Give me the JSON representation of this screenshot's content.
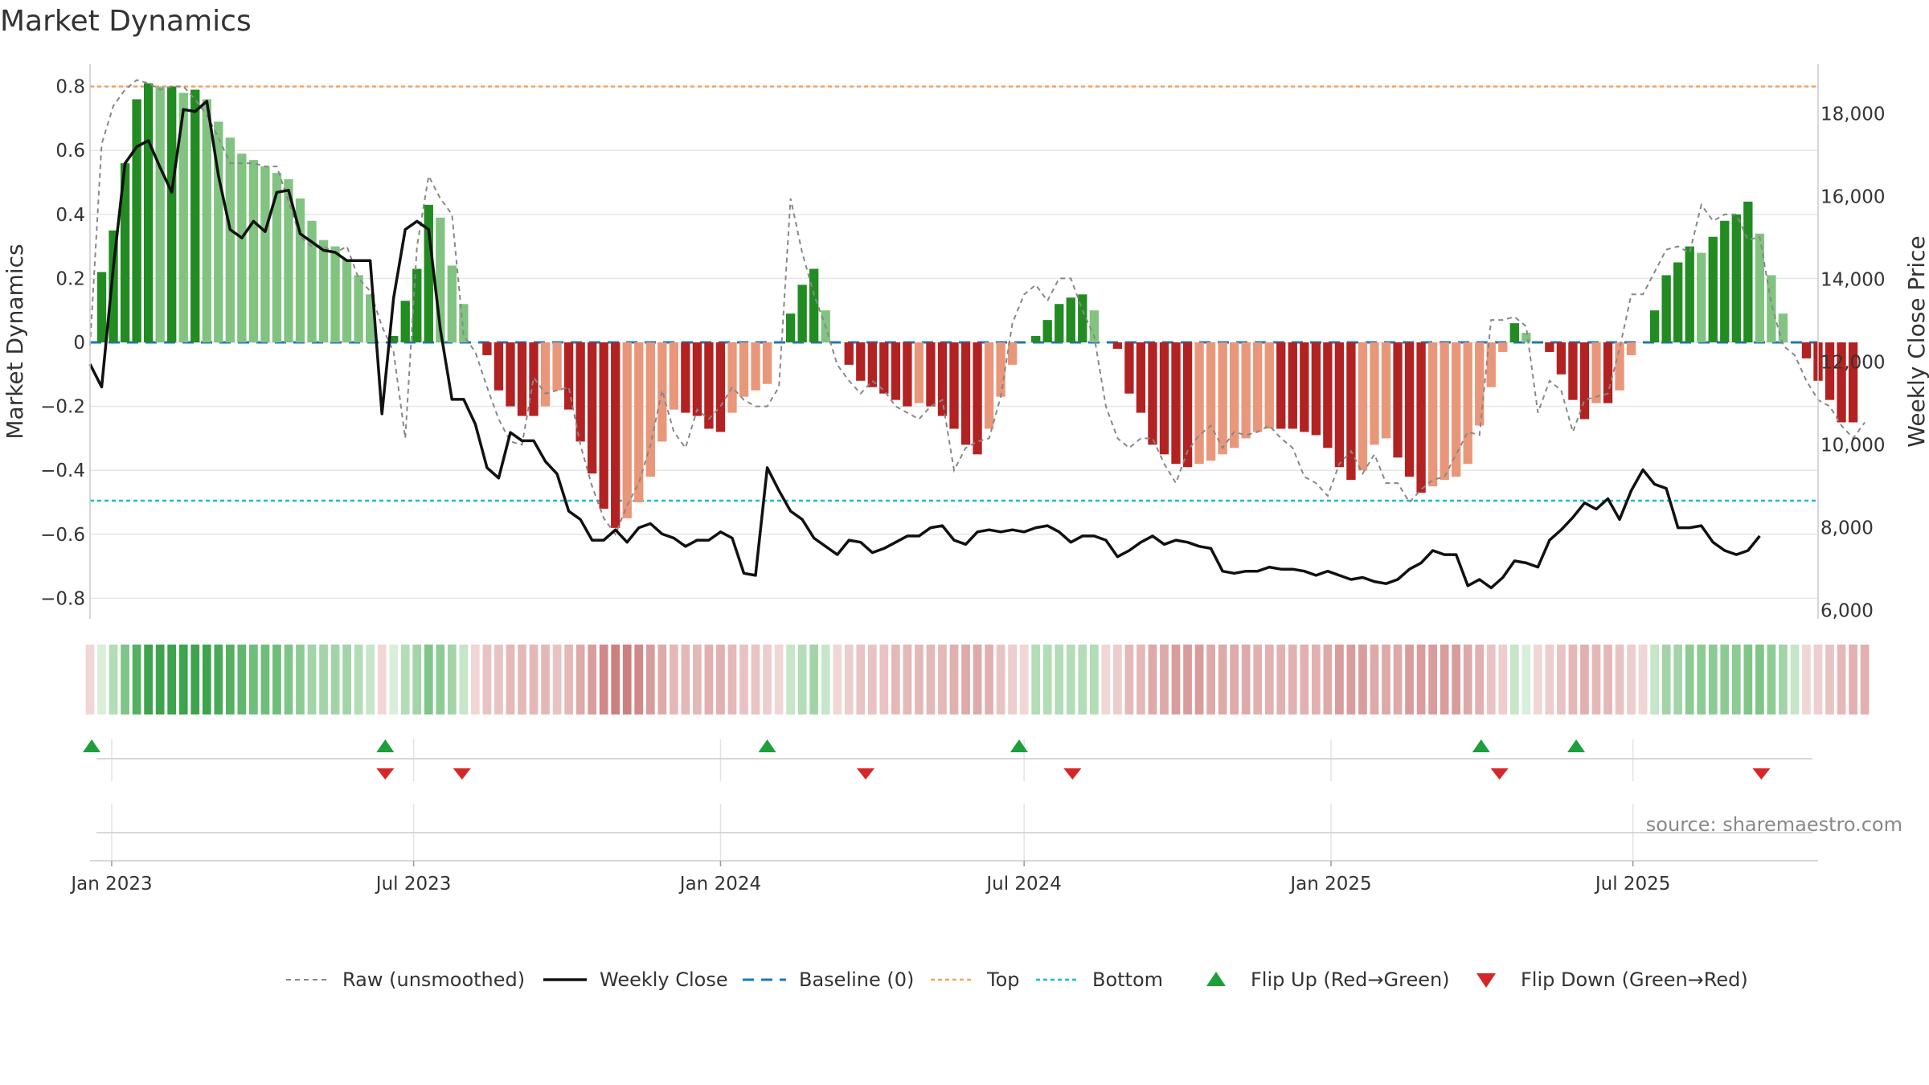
{
  "chart_data": {
    "type": "bar",
    "title": "Market Dynamics",
    "ylabel": "Market Dynamics",
    "y2label": "Weekly Close Price",
    "ylim": [
      -0.86,
      0.89
    ],
    "y2lim": [
      5800,
      18900
    ],
    "yticks": [
      0.8,
      0.6,
      0.4,
      0.2,
      0,
      -0.2,
      -0.4,
      -0.6,
      -0.8
    ],
    "ytick_labels": [
      "0.8",
      "0.6",
      "0.4",
      "0.2",
      "0",
      "−0.2",
      "−0.4",
      "−0.6",
      "−0.8"
    ],
    "y2ticks": [
      18000,
      16000,
      14000,
      12000,
      10000,
      8000,
      6000
    ],
    "y2tick_labels": [
      "18,000",
      "16,000",
      "14,000",
      "12,000",
      "10,000",
      "8,000",
      "6,000"
    ],
    "x_start": "2022-12-19",
    "x_end": "2025-10-20",
    "xticks": [
      "2023-01-01",
      "2023-07-01",
      "2024-01-01",
      "2024-07-01",
      "2025-01-01",
      "2025-07-01"
    ],
    "xtick_labels": [
      "Jan 2023",
      "Jul 2023",
      "Jan 2024",
      "Jul 2024",
      "Jan 2025",
      "Jul 2025"
    ],
    "first_week": "2022-12-19",
    "grid": true,
    "legend_position": "bottom",
    "top_level": 0.8,
    "bottom_level": -0.495,
    "baseline": 0,
    "colors": {
      "green_strong": "#228b22",
      "green_light": "#82c382",
      "red_strong": "#b22222",
      "red_light": "#e9977a",
      "price_line": "#111111",
      "raw_line": "#888888",
      "baseline": "#1f77b4",
      "top": "#f4a460",
      "bottom": "#17becf",
      "flip_up": "#1e9e3c",
      "flip_down": "#d62728"
    },
    "series": [
      {
        "name": "Market Dynamics",
        "values": [
          0,
          0.22,
          0.35,
          0.56,
          0.76,
          0.81,
          0.8,
          0.8,
          0.78,
          0.79,
          0.76,
          0.69,
          0.64,
          0.59,
          0.57,
          0.55,
          0.53,
          0.51,
          0.45,
          0.38,
          0.32,
          0.3,
          0.26,
          0.21,
          0.15,
          0,
          0.02,
          0.13,
          0.23,
          0.43,
          0.39,
          0.24,
          0.12,
          0,
          -0.04,
          -0.15,
          -0.2,
          -0.23,
          -0.23,
          -0.2,
          -0.15,
          -0.21,
          -0.31,
          -0.41,
          -0.52,
          -0.58,
          -0.55,
          -0.5,
          -0.42,
          -0.31,
          -0.21,
          -0.22,
          -0.23,
          -0.27,
          -0.28,
          -0.22,
          -0.17,
          -0.15,
          -0.13,
          0,
          0.09,
          0.18,
          0.23,
          0.1,
          0,
          -0.07,
          -0.12,
          -0.14,
          -0.16,
          -0.18,
          -0.2,
          -0.19,
          -0.2,
          -0.23,
          -0.27,
          -0.32,
          -0.35,
          -0.27,
          -0.17,
          -0.07,
          0,
          0.02,
          0.07,
          0.12,
          0.14,
          0.15,
          0.1,
          0,
          -0.02,
          -0.16,
          -0.22,
          -0.32,
          -0.35,
          -0.38,
          -0.39,
          -0.38,
          -0.37,
          -0.35,
          -0.33,
          -0.3,
          -0.28,
          -0.27,
          -0.27,
          -0.27,
          -0.28,
          -0.29,
          -0.33,
          -0.39,
          -0.43,
          -0.4,
          -0.32,
          -0.3,
          -0.36,
          -0.42,
          -0.47,
          -0.45,
          -0.43,
          -0.42,
          -0.38,
          -0.26,
          -0.14,
          -0.03,
          0.06,
          0.03,
          0,
          -0.03,
          -0.1,
          -0.18,
          -0.24,
          -0.19,
          -0.19,
          -0.15,
          -0.04,
          0,
          0.1,
          0.21,
          0.25,
          0.3,
          0.28,
          0.33,
          0.38,
          0.4,
          0.44,
          0.34,
          0.21,
          0.09,
          0,
          -0.05,
          -0.12,
          -0.18,
          -0.25,
          -0.25
        ]
      },
      {
        "name": "Raw (unsmoothed)",
        "values": [
          -0.01,
          0.62,
          0.74,
          0.79,
          0.82,
          0.81,
          0.79,
          0.8,
          0.8,
          0.76,
          0.71,
          0.64,
          0.56,
          0.56,
          0.56,
          0.55,
          0.55,
          0.44,
          0.33,
          0.3,
          0.3,
          0.28,
          0.3,
          0.2,
          0.16,
          0.05,
          -0.03,
          -0.3,
          0.3,
          0.52,
          0.45,
          0.4,
          0.02,
          -0.03,
          -0.14,
          -0.24,
          -0.31,
          -0.32,
          -0.11,
          -0.16,
          -0.15,
          -0.14,
          -0.32,
          -0.45,
          -0.55,
          -0.6,
          -0.51,
          -0.44,
          -0.32,
          -0.15,
          -0.28,
          -0.33,
          -0.21,
          -0.24,
          -0.2,
          -0.14,
          -0.18,
          -0.2,
          -0.2,
          -0.14,
          0.45,
          0.28,
          0.15,
          0.05,
          -0.07,
          -0.12,
          -0.16,
          -0.12,
          -0.15,
          -0.2,
          -0.22,
          -0.24,
          -0.2,
          -0.18,
          -0.4,
          -0.33,
          -0.31,
          -0.3,
          -0.17,
          0.06,
          0.15,
          0.18,
          0.13,
          0.2,
          0.2,
          0.1,
          0.02,
          -0.2,
          -0.3,
          -0.33,
          -0.3,
          -0.3,
          -0.38,
          -0.44,
          -0.34,
          -0.29,
          -0.26,
          -0.33,
          -0.28,
          -0.29,
          -0.28,
          -0.26,
          -0.3,
          -0.33,
          -0.42,
          -0.44,
          -0.48,
          -0.38,
          -0.34,
          -0.41,
          -0.35,
          -0.44,
          -0.44,
          -0.5,
          -0.46,
          -0.43,
          -0.42,
          -0.35,
          -0.28,
          -0.29,
          0.07,
          0.07,
          0.08,
          0.05,
          -0.22,
          -0.12,
          -0.15,
          -0.28,
          -0.18,
          -0.17,
          -0.16,
          -0.02,
          0.15,
          0.15,
          0.22,
          0.29,
          0.3,
          0.28,
          0.43,
          0.38,
          0.4,
          0.4,
          0.32,
          0.33,
          0.12,
          -0.01,
          -0.04,
          -0.12,
          -0.18,
          -0.2,
          -0.26,
          -0.3,
          -0.25
        ]
      },
      {
        "name": "Weekly Close",
        "values": [
          11950,
          11400,
          14300,
          16800,
          17200,
          17350,
          16700,
          16100,
          18100,
          18050,
          18300,
          16500,
          15200,
          15000,
          15400,
          15150,
          16100,
          16150,
          15100,
          14900,
          14700,
          14650,
          14450,
          14450,
          14450,
          10750,
          13550,
          15200,
          15400,
          15200,
          12800,
          11100,
          11100,
          10500,
          9450,
          9200,
          10300,
          10100,
          10100,
          9600,
          9300,
          8400,
          8200,
          7700,
          7700,
          7950,
          7650,
          8000,
          8100,
          7850,
          7750,
          7550,
          7700,
          7700,
          7900,
          7750,
          6900,
          6850,
          9450,
          8900,
          8400,
          8200,
          7750,
          7550,
          7350,
          7700,
          7650,
          7400,
          7500,
          7650,
          7800,
          7800,
          8000,
          8050,
          7700,
          7600,
          7900,
          7950,
          7900,
          7950,
          7900,
          8000,
          8050,
          7900,
          7650,
          7800,
          7800,
          7700,
          7300,
          7450,
          7650,
          7800,
          7600,
          7700,
          7650,
          7550,
          7500,
          6950,
          6900,
          6950,
          6950,
          7050,
          7000,
          7000,
          6950,
          6850,
          6950,
          6850,
          6750,
          6800,
          6700,
          6650,
          6750,
          7000,
          7150,
          7450,
          7350,
          7350,
          6600,
          6750,
          6550,
          6800,
          7200,
          7150,
          7050,
          7700,
          7950,
          8250,
          8600,
          8450,
          8700,
          8200,
          8900,
          9400,
          9050,
          8950,
          8000,
          8000,
          8050,
          7650,
          7450,
          7350,
          7450,
          7800
        ]
      }
    ],
    "strip_colors": [
      "#f1d6d6",
      "#d9eedb",
      "#b2ddb6",
      "#7fc488",
      "#55b062",
      "#3da34d",
      "#3da34d",
      "#3da34d",
      "#3da34d",
      "#3da34d",
      "#3da34d",
      "#4aa958",
      "#55b062",
      "#62b66e",
      "#6ebd79",
      "#6ebd79",
      "#6ebd79",
      "#7fc488",
      "#8dcb95",
      "#a2d4a8",
      "#a2d4a8",
      "#a2d4a8",
      "#a2d4a8",
      "#b2ddb6",
      "#c6e5c9",
      "#f1d6d6",
      "#d9eedb",
      "#b2ddb6",
      "#a2d4a8",
      "#7fc488",
      "#8dcb95",
      "#a2d4a8",
      "#c6e5c9",
      "#f1d6d6",
      "#e9c3c3",
      "#e9c3c3",
      "#e5b8b8",
      "#e5b8b8",
      "#e5b8b8",
      "#e5b8b8",
      "#e9c3c3",
      "#e5b8b8",
      "#dea9a9",
      "#d89c9c",
      "#d08888",
      "#cc7f7f",
      "#cc7f7f",
      "#d08888",
      "#d89c9c",
      "#dea9a9",
      "#e5b8b8",
      "#e5b8b8",
      "#e5b8b8",
      "#e2b0b0",
      "#e2b0b0",
      "#e5b8b8",
      "#e9c3c3",
      "#e9c3c3",
      "#edcdcd",
      "#f1d6d6",
      "#c6e5c9",
      "#b2ddb6",
      "#a2d4a8",
      "#c6e5c9",
      "#f1d6d6",
      "#edcdcd",
      "#e9c3c3",
      "#e9c3c3",
      "#e9c3c3",
      "#e5b8b8",
      "#e5b8b8",
      "#e5b8b8",
      "#e5b8b8",
      "#e5b8b8",
      "#e2b0b0",
      "#dea9a9",
      "#dea9a9",
      "#e2b0b0",
      "#e9c3c3",
      "#edcdcd",
      "#f1d6d6",
      "#b2ddb6",
      "#b2ddb6",
      "#b2ddb6",
      "#b2ddb6",
      "#b2ddb6",
      "#b2ddb6",
      "#f1d6d6",
      "#edcdcd",
      "#e5b8b8",
      "#e5b8b8",
      "#dea9a9",
      "#dea9a9",
      "#d89c9c",
      "#d89c9c",
      "#d89c9c",
      "#dea9a9",
      "#dea9a9",
      "#dea9a9",
      "#dea9a9",
      "#e2b0b0",
      "#e2b0b0",
      "#e2b0b0",
      "#e2b0b0",
      "#e2b0b0",
      "#e2b0b0",
      "#dea9a9",
      "#d89c9c",
      "#d89c9c",
      "#d89c9c",
      "#dea9a9",
      "#dea9a9",
      "#dea9a9",
      "#d89c9c",
      "#d89c9c",
      "#d89c9c",
      "#d89c9c",
      "#d89c9c",
      "#dea9a9",
      "#e2b0b0",
      "#e9c3c3",
      "#edcdcd",
      "#c6e5c9",
      "#d9eedb",
      "#f1d6d6",
      "#edcdcd",
      "#e9c3c3",
      "#e5b8b8",
      "#e2b0b0",
      "#e5b8b8",
      "#e5b8b8",
      "#e9c3c3",
      "#edcdcd",
      "#f1d6d6",
      "#c6e5c9",
      "#a2d4a8",
      "#a2d4a8",
      "#8dcb95",
      "#8dcb95",
      "#8dcb95",
      "#8dcb95",
      "#8dcb95",
      "#7fc488",
      "#7fc488",
      "#8dcb95",
      "#a2d4a8",
      "#c6e5c9",
      "#f1d6d6",
      "#edcdcd",
      "#e9c3c3",
      "#e5b8b8",
      "#e2b0b0",
      "#e2b0b0"
    ],
    "flip_up": [
      "2022-12-20",
      "2023-06-14",
      "2024-01-29",
      "2024-06-28",
      "2025-04-01",
      "2025-05-28"
    ],
    "flip_down": [
      "2023-06-14",
      "2023-07-30",
      "2024-03-28",
      "2024-07-30",
      "2025-04-12",
      "2025-09-16"
    ],
    "source": "source: sharemaestro.com",
    "legend": [
      {
        "label": "Raw (unsmoothed)",
        "kind": "line",
        "color": "#888888",
        "dash": "6,5",
        "width": 2
      },
      {
        "label": "Weekly Close",
        "kind": "line",
        "color": "#111111",
        "dash": "",
        "width": 3.5
      },
      {
        "label": "Baseline (0)",
        "kind": "line",
        "color": "#1f77b4",
        "dash": "14,9",
        "width": 3
      },
      {
        "label": "Top",
        "kind": "line",
        "color": "#f4a460",
        "dash": "5,4",
        "width": 2.5
      },
      {
        "label": "Bottom",
        "kind": "line",
        "color": "#17becf",
        "dash": "5,4",
        "width": 2.5
      },
      {
        "label": "Flip Up (Red→Green)",
        "kind": "up",
        "color": "#1e9e3c"
      },
      {
        "label": "Flip Down (Green→Red)",
        "kind": "down",
        "color": "#d62728"
      }
    ]
  }
}
